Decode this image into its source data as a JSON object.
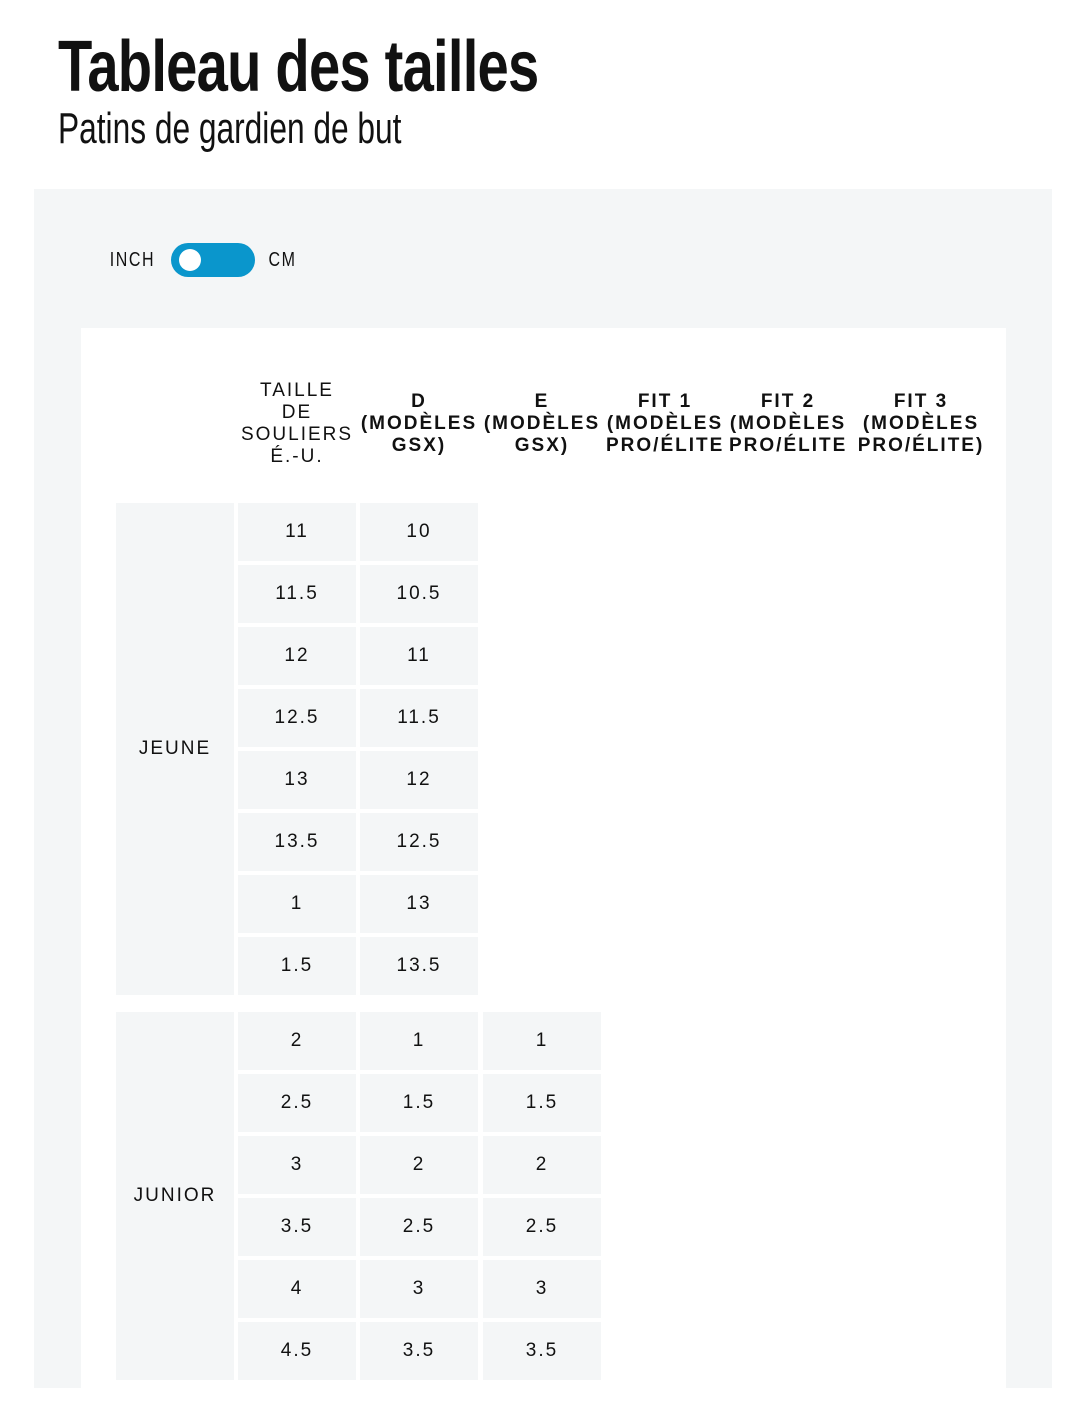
{
  "header": {
    "title": "Tableau des tailles",
    "subtitle": "Patins de gardien de but"
  },
  "unit_toggle": {
    "left_label": "INCH",
    "right_label": "CM",
    "selected": "INCH",
    "accent_color": "#0a96cc"
  },
  "table": {
    "columns": [
      [
        "TAILLE",
        "DE",
        "SOULIERS",
        "É.-U."
      ],
      [
        "D",
        "(MODÈLES",
        "GSX)"
      ],
      [
        "E",
        "(MODÈLES",
        "GSX)"
      ],
      [
        "FIT 1",
        "(MODÈLES",
        "PRO/ÉLITE)"
      ],
      [
        "FIT 2",
        "(MODÈLES",
        "PRO/ÉLITE)"
      ],
      [
        "FIT 3",
        "(MODÈLES",
        "PRO/ÉLITE)"
      ]
    ],
    "groups": [
      {
        "label": "JEUNE",
        "rows": [
          [
            "11",
            "10"
          ],
          [
            "11.5",
            "10.5"
          ],
          [
            "12",
            "11"
          ],
          [
            "12.5",
            "11.5"
          ],
          [
            "13",
            "12"
          ],
          [
            "13.5",
            "12.5"
          ],
          [
            "1",
            "13"
          ],
          [
            "1.5",
            "13.5"
          ]
        ]
      },
      {
        "label": "JUNIOR",
        "rows": [
          [
            "2",
            "1",
            "1"
          ],
          [
            "2.5",
            "1.5",
            "1.5"
          ],
          [
            "3",
            "2",
            "2"
          ],
          [
            "3.5",
            "2.5",
            "2.5"
          ],
          [
            "4",
            "3",
            "3"
          ],
          [
            "4.5",
            "3.5",
            "3.5"
          ]
        ]
      }
    ]
  }
}
